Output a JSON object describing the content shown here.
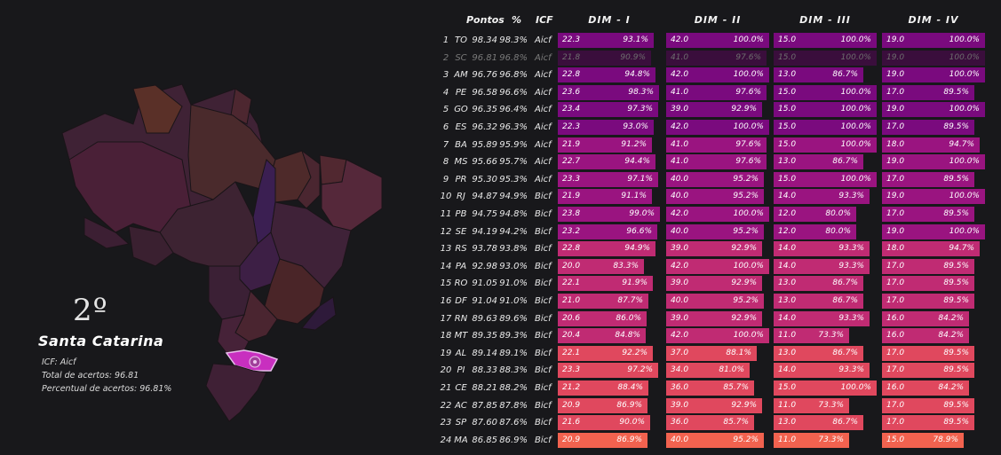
{
  "selected": {
    "rank": "2º",
    "name": "Santa Catarina",
    "icf_line": "ICF: Aicf",
    "total_line": "Total de acertos: 96.81",
    "percent_line": "Percentual de acertos: 96.81%"
  },
  "headers": {
    "pontos": "Pontos",
    "pct": "%",
    "icf": "ICF",
    "dims": [
      "DIM - I",
      "DIM - II",
      "DIM - III",
      "DIM - IV"
    ]
  },
  "colors": {
    "background": "#18181b",
    "bar_scale": [
      "#7a0a7e",
      "#9a1480",
      "#c02b73",
      "#e0485e",
      "#f2624f"
    ],
    "map_fill": "#3a2030",
    "selected_state": "#c82fbf"
  },
  "chart_data": {
    "type": "table",
    "dim_max": [
      24,
      42,
      15,
      19
    ],
    "rows": [
      {
        "rank": "1",
        "uf": "TO",
        "pontos": "98.34",
        "pct": "98.3%",
        "icf": "Aicf",
        "dims": [
          {
            "v": "22.3",
            "p": "93.1%"
          },
          {
            "v": "42.0",
            "p": "100.0%"
          },
          {
            "v": "15.0",
            "p": "100.0%"
          },
          {
            "v": "19.0",
            "p": "100.0%"
          }
        ]
      },
      {
        "rank": "2",
        "uf": "SC",
        "pontos": "96.81",
        "pct": "96.8%",
        "icf": "Aicf",
        "dims": [
          {
            "v": "21.8",
            "p": "90.9%"
          },
          {
            "v": "41.0",
            "p": "97.6%"
          },
          {
            "v": "15.0",
            "p": "100.0%"
          },
          {
            "v": "19.0",
            "p": "100.0%"
          }
        ]
      },
      {
        "rank": "3",
        "uf": "AM",
        "pontos": "96.76",
        "pct": "96.8%",
        "icf": "Aicf",
        "dims": [
          {
            "v": "22.8",
            "p": "94.8%"
          },
          {
            "v": "42.0",
            "p": "100.0%"
          },
          {
            "v": "13.0",
            "p": "86.7%"
          },
          {
            "v": "19.0",
            "p": "100.0%"
          }
        ]
      },
      {
        "rank": "4",
        "uf": "PE",
        "pontos": "96.58",
        "pct": "96.6%",
        "icf": "Aicf",
        "dims": [
          {
            "v": "23.6",
            "p": "98.3%"
          },
          {
            "v": "41.0",
            "p": "97.6%"
          },
          {
            "v": "15.0",
            "p": "100.0%"
          },
          {
            "v": "17.0",
            "p": "89.5%"
          }
        ]
      },
      {
        "rank": "5",
        "uf": "GO",
        "pontos": "96.35",
        "pct": "96.4%",
        "icf": "Aicf",
        "dims": [
          {
            "v": "23.4",
            "p": "97.3%"
          },
          {
            "v": "39.0",
            "p": "92.9%"
          },
          {
            "v": "15.0",
            "p": "100.0%"
          },
          {
            "v": "19.0",
            "p": "100.0%"
          }
        ]
      },
      {
        "rank": "6",
        "uf": "ES",
        "pontos": "96.32",
        "pct": "96.3%",
        "icf": "Aicf",
        "dims": [
          {
            "v": "22.3",
            "p": "93.0%"
          },
          {
            "v": "42.0",
            "p": "100.0%"
          },
          {
            "v": "15.0",
            "p": "100.0%"
          },
          {
            "v": "17.0",
            "p": "89.5%"
          }
        ]
      },
      {
        "rank": "7",
        "uf": "BA",
        "pontos": "95.89",
        "pct": "95.9%",
        "icf": "Aicf",
        "dims": [
          {
            "v": "21.9",
            "p": "91.2%"
          },
          {
            "v": "41.0",
            "p": "97.6%"
          },
          {
            "v": "15.0",
            "p": "100.0%"
          },
          {
            "v": "18.0",
            "p": "94.7%"
          }
        ]
      },
      {
        "rank": "8",
        "uf": "MS",
        "pontos": "95.66",
        "pct": "95.7%",
        "icf": "Aicf",
        "dims": [
          {
            "v": "22.7",
            "p": "94.4%"
          },
          {
            "v": "41.0",
            "p": "97.6%"
          },
          {
            "v": "13.0",
            "p": "86.7%"
          },
          {
            "v": "19.0",
            "p": "100.0%"
          }
        ]
      },
      {
        "rank": "9",
        "uf": "PR",
        "pontos": "95.30",
        "pct": "95.3%",
        "icf": "Aicf",
        "dims": [
          {
            "v": "23.3",
            "p": "97.1%"
          },
          {
            "v": "40.0",
            "p": "95.2%"
          },
          {
            "v": "15.0",
            "p": "100.0%"
          },
          {
            "v": "17.0",
            "p": "89.5%"
          }
        ]
      },
      {
        "rank": "10",
        "uf": "RJ",
        "pontos": "94.87",
        "pct": "94.9%",
        "icf": "Bicf",
        "dims": [
          {
            "v": "21.9",
            "p": "91.1%"
          },
          {
            "v": "40.0",
            "p": "95.2%"
          },
          {
            "v": "14.0",
            "p": "93.3%"
          },
          {
            "v": "19.0",
            "p": "100.0%"
          }
        ]
      },
      {
        "rank": "11",
        "uf": "PB",
        "pontos": "94.75",
        "pct": "94.8%",
        "icf": "Bicf",
        "dims": [
          {
            "v": "23.8",
            "p": "99.0%"
          },
          {
            "v": "42.0",
            "p": "100.0%"
          },
          {
            "v": "12.0",
            "p": "80.0%"
          },
          {
            "v": "17.0",
            "p": "89.5%"
          }
        ]
      },
      {
        "rank": "12",
        "uf": "SE",
        "pontos": "94.19",
        "pct": "94.2%",
        "icf": "Bicf",
        "dims": [
          {
            "v": "23.2",
            "p": "96.6%"
          },
          {
            "v": "40.0",
            "p": "95.2%"
          },
          {
            "v": "12.0",
            "p": "80.0%"
          },
          {
            "v": "19.0",
            "p": "100.0%"
          }
        ]
      },
      {
        "rank": "13",
        "uf": "RS",
        "pontos": "93.78",
        "pct": "93.8%",
        "icf": "Bicf",
        "dims": [
          {
            "v": "22.8",
            "p": "94.9%"
          },
          {
            "v": "39.0",
            "p": "92.9%"
          },
          {
            "v": "14.0",
            "p": "93.3%"
          },
          {
            "v": "18.0",
            "p": "94.7%"
          }
        ]
      },
      {
        "rank": "14",
        "uf": "PA",
        "pontos": "92.98",
        "pct": "93.0%",
        "icf": "Bicf",
        "dims": [
          {
            "v": "20.0",
            "p": "83.3%"
          },
          {
            "v": "42.0",
            "p": "100.0%"
          },
          {
            "v": "14.0",
            "p": "93.3%"
          },
          {
            "v": "17.0",
            "p": "89.5%"
          }
        ]
      },
      {
        "rank": "15",
        "uf": "RO",
        "pontos": "91.05",
        "pct": "91.0%",
        "icf": "Bicf",
        "dims": [
          {
            "v": "22.1",
            "p": "91.9%"
          },
          {
            "v": "39.0",
            "p": "92.9%"
          },
          {
            "v": "13.0",
            "p": "86.7%"
          },
          {
            "v": "17.0",
            "p": "89.5%"
          }
        ]
      },
      {
        "rank": "16",
        "uf": "DF",
        "pontos": "91.04",
        "pct": "91.0%",
        "icf": "Bicf",
        "dims": [
          {
            "v": "21.0",
            "p": "87.7%"
          },
          {
            "v": "40.0",
            "p": "95.2%"
          },
          {
            "v": "13.0",
            "p": "86.7%"
          },
          {
            "v": "17.0",
            "p": "89.5%"
          }
        ]
      },
      {
        "rank": "17",
        "uf": "RN",
        "pontos": "89.63",
        "pct": "89.6%",
        "icf": "Bicf",
        "dims": [
          {
            "v": "20.6",
            "p": "86.0%"
          },
          {
            "v": "39.0",
            "p": "92.9%"
          },
          {
            "v": "14.0",
            "p": "93.3%"
          },
          {
            "v": "16.0",
            "p": "84.2%"
          }
        ]
      },
      {
        "rank": "18",
        "uf": "MT",
        "pontos": "89.35",
        "pct": "89.3%",
        "icf": "Bicf",
        "dims": [
          {
            "v": "20.4",
            "p": "84.8%"
          },
          {
            "v": "42.0",
            "p": "100.0%"
          },
          {
            "v": "11.0",
            "p": "73.3%"
          },
          {
            "v": "16.0",
            "p": "84.2%"
          }
        ]
      },
      {
        "rank": "19",
        "uf": "AL",
        "pontos": "89.14",
        "pct": "89.1%",
        "icf": "Bicf",
        "dims": [
          {
            "v": "22.1",
            "p": "92.2%"
          },
          {
            "v": "37.0",
            "p": "88.1%"
          },
          {
            "v": "13.0",
            "p": "86.7%"
          },
          {
            "v": "17.0",
            "p": "89.5%"
          }
        ]
      },
      {
        "rank": "20",
        "uf": "PI",
        "pontos": "88.33",
        "pct": "88.3%",
        "icf": "Bicf",
        "dims": [
          {
            "v": "23.3",
            "p": "97.2%"
          },
          {
            "v": "34.0",
            "p": "81.0%"
          },
          {
            "v": "14.0",
            "p": "93.3%"
          },
          {
            "v": "17.0",
            "p": "89.5%"
          }
        ]
      },
      {
        "rank": "21",
        "uf": "CE",
        "pontos": "88.21",
        "pct": "88.2%",
        "icf": "Bicf",
        "dims": [
          {
            "v": "21.2",
            "p": "88.4%"
          },
          {
            "v": "36.0",
            "p": "85.7%"
          },
          {
            "v": "15.0",
            "p": "100.0%"
          },
          {
            "v": "16.0",
            "p": "84.2%"
          }
        ]
      },
      {
        "rank": "22",
        "uf": "AC",
        "pontos": "87.85",
        "pct": "87.8%",
        "icf": "Bicf",
        "dims": [
          {
            "v": "20.9",
            "p": "86.9%"
          },
          {
            "v": "39.0",
            "p": "92.9%"
          },
          {
            "v": "11.0",
            "p": "73.3%"
          },
          {
            "v": "17.0",
            "p": "89.5%"
          }
        ]
      },
      {
        "rank": "23",
        "uf": "SP",
        "pontos": "87.60",
        "pct": "87.6%",
        "icf": "Bicf",
        "dims": [
          {
            "v": "21.6",
            "p": "90.0%"
          },
          {
            "v": "36.0",
            "p": "85.7%"
          },
          {
            "v": "13.0",
            "p": "86.7%"
          },
          {
            "v": "17.0",
            "p": "89.5%"
          }
        ]
      },
      {
        "rank": "24",
        "uf": "MA",
        "pontos": "86.85",
        "pct": "86.9%",
        "icf": "Bicf",
        "dims": [
          {
            "v": "20.9",
            "p": "86.9%"
          },
          {
            "v": "40.0",
            "p": "95.2%"
          },
          {
            "v": "11.0",
            "p": "73.3%"
          },
          {
            "v": "15.0",
            "p": "78.9%"
          }
        ]
      }
    ]
  }
}
